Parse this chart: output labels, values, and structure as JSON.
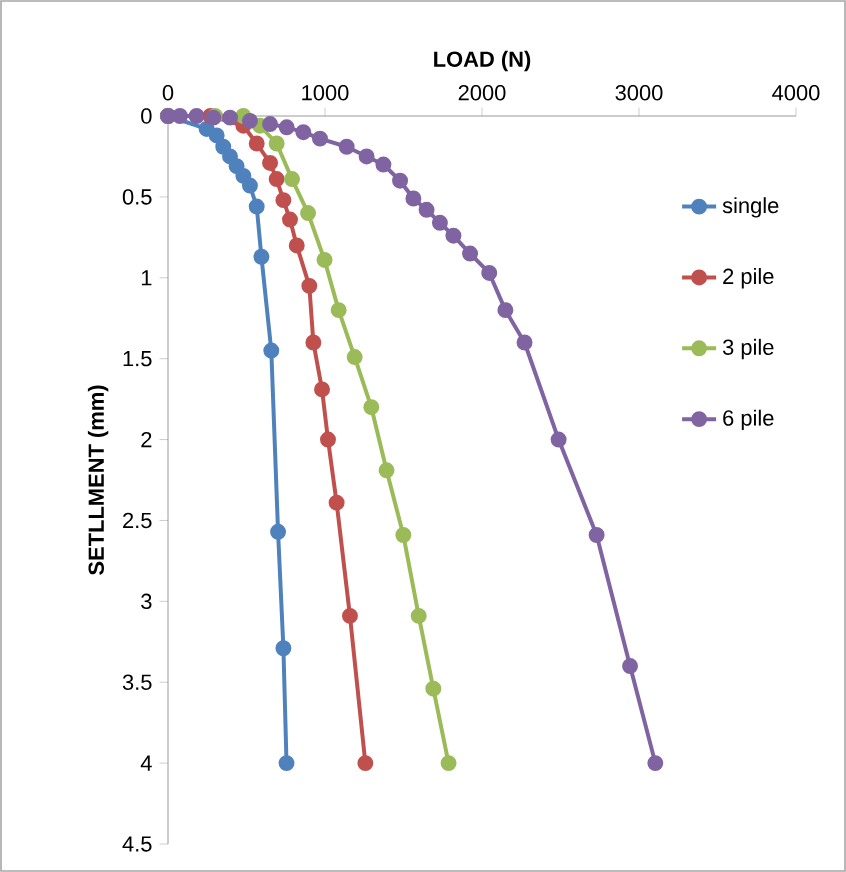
{
  "chart_data": {
    "type": "line",
    "xlabel": "LOAD (N)",
    "ylabel": "SETLLMENT (mm)",
    "xlim": [
      0,
      4000
    ],
    "xticks": [
      0,
      1000,
      2000,
      3000,
      4000
    ],
    "ylim": [
      4.5,
      0
    ],
    "yticks": [
      0,
      0.5,
      1,
      1.5,
      2,
      2.5,
      3,
      3.5,
      4,
      4.5
    ],
    "marker": "circle",
    "legend": "right",
    "grid": false,
    "series": [
      {
        "name": "single",
        "color": "#4f81bd",
        "x": [
          0,
          119,
          182,
          246,
          310,
          352,
          395,
          437,
          480,
          522,
          565,
          595,
          658,
          701,
          735,
          755
        ],
        "values": [
          0,
          null,
          null,
          0.08,
          0.12,
          0.19,
          0.25,
          0.31,
          0.37,
          0.43,
          0.56,
          0.87,
          1.45,
          2.57,
          3.29,
          4.0
        ]
      },
      {
        "name": "2 pile",
        "color": "#c0504d",
        "x": [
          0,
          270,
          374,
          480,
          565,
          650,
          692,
          735,
          777,
          820,
          900,
          926,
          981,
          1019,
          1074,
          1159,
          1257
        ],
        "values": [
          0,
          0,
          null,
          0.06,
          0.17,
          0.29,
          0.39,
          0.52,
          0.64,
          0.8,
          1.05,
          1.4,
          1.69,
          2.0,
          2.39,
          3.09,
          4.0
        ]
      },
      {
        "name": "3 pile",
        "color": "#9bbb59",
        "x": [
          0,
          300,
          480,
          586,
          692,
          790,
          892,
          997,
          1087,
          1189,
          1295,
          1392,
          1499,
          1597,
          1690,
          1787
        ],
        "values": [
          0,
          0,
          0,
          0.06,
          0.17,
          0.39,
          0.6,
          0.89,
          1.2,
          1.49,
          1.8,
          2.19,
          2.59,
          3.09,
          3.54,
          4.0
        ]
      },
      {
        "name": "6 pile",
        "color": "#8064a2",
        "x": [
          0,
          76,
          182,
          289,
          395,
          522,
          650,
          756,
          862,
          968,
          1138,
          1265,
          1372,
          1478,
          1563,
          1647,
          1732,
          1818,
          1924,
          2046,
          2149,
          2271,
          2488,
          2730,
          2943,
          3104
        ],
        "values": [
          0,
          0,
          0,
          0.01,
          0.01,
          0.03,
          0.05,
          0.07,
          0.1,
          0.14,
          0.19,
          0.25,
          0.3,
          0.4,
          0.51,
          0.58,
          0.66,
          0.74,
          0.85,
          0.97,
          1.2,
          1.4,
          2.0,
          2.59,
          3.4,
          4.0
        ]
      }
    ]
  }
}
